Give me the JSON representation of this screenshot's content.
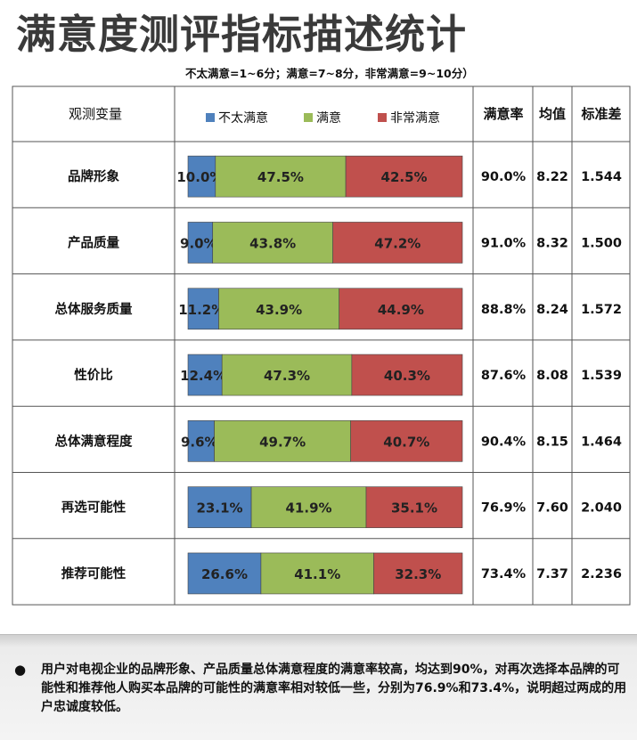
{
  "title": "满意度测评指标描述统计",
  "subtitle": "不太满意=1~6分；满意=7~8分，非常满意=9~10分）",
  "table": {
    "header_var": "观测变量",
    "header_rate": "满意率",
    "header_mean": "均值",
    "header_sd": "标准差"
  },
  "chart_data": {
    "type": "bar",
    "orientation": "horizontal",
    "stacked": true,
    "percent_stacked": true,
    "categories": [
      "品牌形象",
      "产品质量",
      "总体服务质量",
      "性价比",
      "总体满意程度",
      "再选可能性",
      "推荐可能性"
    ],
    "series": [
      {
        "name": "不太满意",
        "color": "#4f81bd",
        "values": [
          10.0,
          9.0,
          11.2,
          12.4,
          9.6,
          23.1,
          26.6
        ],
        "labels": [
          "10.0%",
          "9.0%",
          "11.2%",
          "12.4%",
          "9.6%",
          "23.1%",
          "26.6%"
        ]
      },
      {
        "name": "满意",
        "color": "#9bbb59",
        "values": [
          47.5,
          43.8,
          43.9,
          47.3,
          49.7,
          41.9,
          41.1
        ],
        "labels": [
          "47.5%",
          "43.8%",
          "43.9%",
          "47.3%",
          "49.7%",
          "41.9%",
          "41.1%"
        ]
      },
      {
        "name": "非常满意",
        "color": "#c0504d",
        "values": [
          42.5,
          47.2,
          44.9,
          40.3,
          40.7,
          35.1,
          32.3
        ],
        "labels": [
          "42.5%",
          "47.2%",
          "44.9%",
          "40.3%",
          "40.7%",
          "35.1%",
          "32.3%"
        ]
      }
    ],
    "legend_position": "top",
    "satisfaction_rate": [
      "90.0%",
      "91.0%",
      "88.8%",
      "87.6%",
      "90.4%",
      "76.9%",
      "73.4%"
    ],
    "mean": [
      "8.22",
      "8.32",
      "8.24",
      "8.08",
      "8.15",
      "7.60",
      "7.37"
    ],
    "std_dev": [
      "1.544",
      "1.500",
      "1.572",
      "1.539",
      "1.464",
      "2.040",
      "2.236"
    ]
  },
  "note": "用户对电视企业的品牌形象、产品质量总体满意程度的满意率较高，均达到90%，对再次选择本品牌的可能性和推荐他人购买本品牌的可能性的满意率相对较低一些，分别为76.9%和73.4%，说明超过两成的用户忠诚度较低。"
}
